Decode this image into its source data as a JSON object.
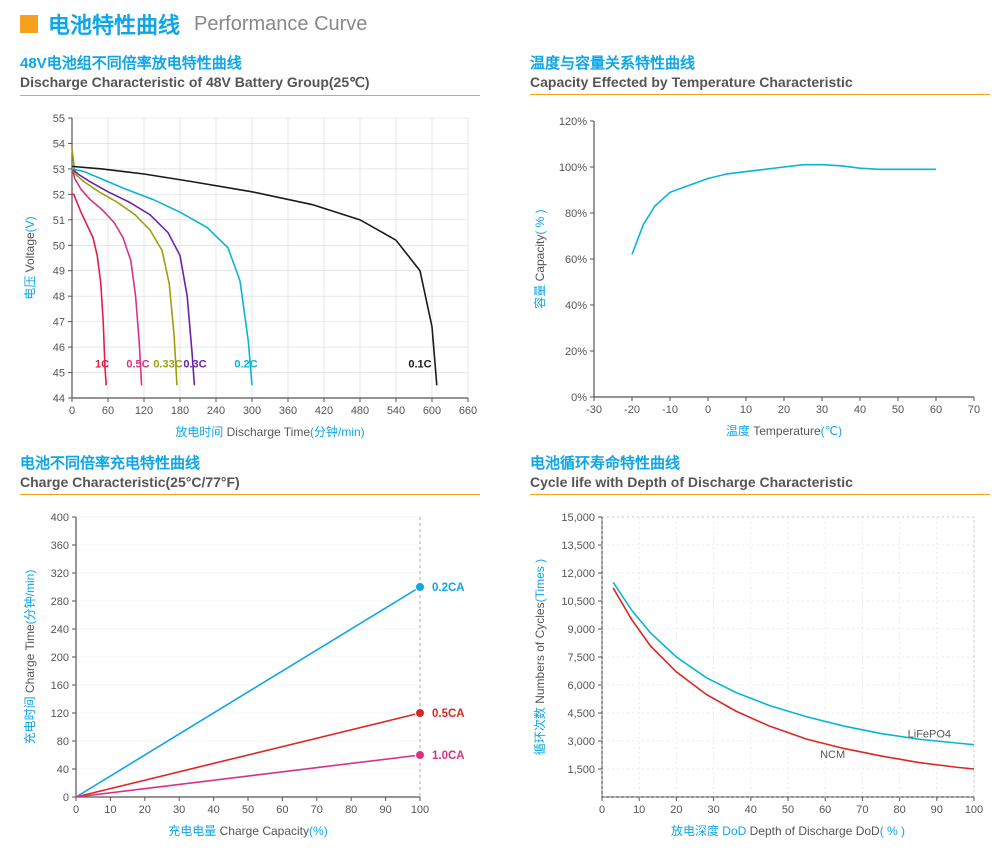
{
  "mainTitle": {
    "cn": "电池特性曲线",
    "en": "Performance Curve"
  },
  "colors": {
    "accent": "#0ea5e9",
    "orange": "#f6a11e",
    "grid": "#d8d8d8",
    "axis": "#555555",
    "bg": "#ffffff"
  },
  "discharge": {
    "titleCn": "48V电池组不同倍率放电特性曲线",
    "titleEn": "Discharge Characteristic of 48V Battery Group(25℃)",
    "xAxisCn": "放电时间",
    "xAxisEn": "Discharge Time",
    "xAxisUnit": "(分钟/min)",
    "yAxisCn": "电压",
    "yAxisEn": "Voltage",
    "yAxisUnit": "(V)",
    "xlim": [
      0,
      660
    ],
    "xtickStep": 60,
    "ylim": [
      44,
      55
    ],
    "ytickStep": 1,
    "series": [
      {
        "label": "1C",
        "color": "#e11d48",
        "labelX": 50,
        "pts": [
          [
            0,
            52
          ],
          [
            3,
            52
          ],
          [
            8,
            51.7
          ],
          [
            15,
            51.3
          ],
          [
            25,
            50.8
          ],
          [
            35,
            50.3
          ],
          [
            42,
            49.6
          ],
          [
            48,
            48.5
          ],
          [
            52,
            47
          ],
          [
            55,
            45.2
          ],
          [
            57,
            44.5
          ]
        ]
      },
      {
        "label": "0.5C",
        "color": "#d63384",
        "labelX": 110,
        "pts": [
          [
            0,
            53.0
          ],
          [
            5,
            52.6
          ],
          [
            15,
            52.2
          ],
          [
            30,
            51.8
          ],
          [
            50,
            51.4
          ],
          [
            70,
            50.9
          ],
          [
            85,
            50.3
          ],
          [
            98,
            49.4
          ],
          [
            106,
            48.0
          ],
          [
            112,
            46.2
          ],
          [
            116,
            44.5
          ]
        ]
      },
      {
        "label": "0.33C",
        "color": "#9ca10a",
        "labelX": 160,
        "pts": [
          [
            0,
            53.8
          ],
          [
            5,
            52.8
          ],
          [
            20,
            52.5
          ],
          [
            45,
            52.1
          ],
          [
            75,
            51.7
          ],
          [
            105,
            51.2
          ],
          [
            130,
            50.6
          ],
          [
            150,
            49.8
          ],
          [
            162,
            48.5
          ],
          [
            170,
            46.5
          ],
          [
            175,
            44.5
          ]
        ]
      },
      {
        "label": "0.3C",
        "color": "#6b21a8",
        "labelX": 205,
        "pts": [
          [
            0,
            53.0
          ],
          [
            10,
            52.8
          ],
          [
            30,
            52.5
          ],
          [
            60,
            52.1
          ],
          [
            95,
            51.7
          ],
          [
            130,
            51.2
          ],
          [
            160,
            50.5
          ],
          [
            180,
            49.6
          ],
          [
            192,
            48.0
          ],
          [
            200,
            45.8
          ],
          [
            204,
            44.5
          ]
        ]
      },
      {
        "label": "0.2C",
        "color": "#06b6d4",
        "labelX": 290,
        "pts": [
          [
            0,
            53.0
          ],
          [
            20,
            52.9
          ],
          [
            50,
            52.6
          ],
          [
            90,
            52.2
          ],
          [
            135,
            51.8
          ],
          [
            180,
            51.3
          ],
          [
            225,
            50.7
          ],
          [
            260,
            49.9
          ],
          [
            280,
            48.6
          ],
          [
            294,
            46.2
          ],
          [
            300,
            44.5
          ]
        ]
      },
      {
        "label": "0.1C",
        "color": "#1a1a1a",
        "labelX": 580,
        "pts": [
          [
            0,
            53.1
          ],
          [
            50,
            53.0
          ],
          [
            120,
            52.8
          ],
          [
            200,
            52.5
          ],
          [
            300,
            52.1
          ],
          [
            400,
            51.6
          ],
          [
            480,
            51.0
          ],
          [
            540,
            50.2
          ],
          [
            580,
            49.0
          ],
          [
            600,
            46.8
          ],
          [
            608,
            44.5
          ]
        ]
      }
    ]
  },
  "tempCapacity": {
    "titleCn": "温度与容量关系特性曲线",
    "titleEn": "Capacity Effected by Temperature Characteristic",
    "xAxisCn": "温度",
    "xAxisEn": "Temperature",
    "xAxisUnit": "(℃)",
    "yAxisCn": "容量",
    "yAxisEn": "Capacity",
    "yAxisUnit": "( % )",
    "xlim": [
      -30,
      70
    ],
    "xtickStep": 10,
    "ylim": [
      0,
      120
    ],
    "ytickStep": 20,
    "lineColor": "#06b6d4",
    "pts": [
      [
        -20,
        62
      ],
      [
        -17,
        75
      ],
      [
        -14,
        83
      ],
      [
        -10,
        89
      ],
      [
        -5,
        92
      ],
      [
        0,
        95
      ],
      [
        5,
        97
      ],
      [
        10,
        98
      ],
      [
        15,
        99
      ],
      [
        20,
        100
      ],
      [
        25,
        101
      ],
      [
        30,
        101
      ],
      [
        35,
        100.5
      ],
      [
        40,
        99.5
      ],
      [
        45,
        99
      ],
      [
        50,
        99
      ],
      [
        55,
        99
      ],
      [
        60,
        99
      ]
    ]
  },
  "charge": {
    "titleCn": "电池不同倍率充电特性曲线",
    "titleEn": "Charge Characteristic(25°C/77°F)",
    "xAxisCn": "充电电量",
    "xAxisEn": "Charge Capacity",
    "xAxisUnit": "(%)",
    "yAxisCn": "充电时间",
    "yAxisEn": "Charge Time",
    "yAxisUnit": "(分钟/min)",
    "xlim": [
      0,
      100
    ],
    "xtickStep": 10,
    "ylim": [
      0,
      400
    ],
    "ytickStep": 40,
    "verticalDashX": 100,
    "series": [
      {
        "label": "0.2CA",
        "color": "#0ea5e9",
        "pts": [
          [
            0,
            0
          ],
          [
            100,
            300
          ]
        ],
        "marker": true
      },
      {
        "label": "0.5CA",
        "color": "#dc2626",
        "pts": [
          [
            0,
            0
          ],
          [
            100,
            120
          ]
        ],
        "marker": true
      },
      {
        "label": "1.0CA",
        "color": "#d63384",
        "pts": [
          [
            0,
            0
          ],
          [
            100,
            60
          ]
        ],
        "marker": true
      }
    ]
  },
  "cycle": {
    "titleCn": "电池循环寿命特性曲线",
    "titleEn": "Cycle life with Depth of Discharge Characteristic",
    "xAxisCn": "放电深度 DoD",
    "xAxisEn": "Depth of Discharge DoD",
    "xAxisUnit": "( % )",
    "yAxisCn": "循环次数",
    "yAxisEn": "Numbers of Cycles",
    "yAxisUnit": "(Times )",
    "xlim": [
      0,
      100
    ],
    "xtickStep": 10,
    "ylim": [
      0,
      15000
    ],
    "yticks": [
      1500,
      3000,
      4500,
      6000,
      7500,
      9000,
      10500,
      12000,
      13500,
      15000
    ],
    "series": [
      {
        "label": "LiFePO4",
        "color": "#06b6d4",
        "labelX": 88,
        "labelY": 3200,
        "pts": [
          [
            3,
            11500
          ],
          [
            8,
            10000
          ],
          [
            13,
            8800
          ],
          [
            20,
            7500
          ],
          [
            28,
            6400
          ],
          [
            36,
            5600
          ],
          [
            45,
            4900
          ],
          [
            55,
            4300
          ],
          [
            65,
            3800
          ],
          [
            75,
            3400
          ],
          [
            85,
            3100
          ],
          [
            95,
            2900
          ],
          [
            100,
            2800
          ]
        ]
      },
      {
        "label": "NCM",
        "color": "#dc2626",
        "labelX": 62,
        "labelY": 2100,
        "pts": [
          [
            3,
            11200
          ],
          [
            8,
            9500
          ],
          [
            13,
            8100
          ],
          [
            20,
            6700
          ],
          [
            28,
            5500
          ],
          [
            36,
            4600
          ],
          [
            45,
            3800
          ],
          [
            55,
            3100
          ],
          [
            65,
            2600
          ],
          [
            75,
            2200
          ],
          [
            85,
            1850
          ],
          [
            95,
            1600
          ],
          [
            100,
            1500
          ]
        ]
      }
    ]
  }
}
